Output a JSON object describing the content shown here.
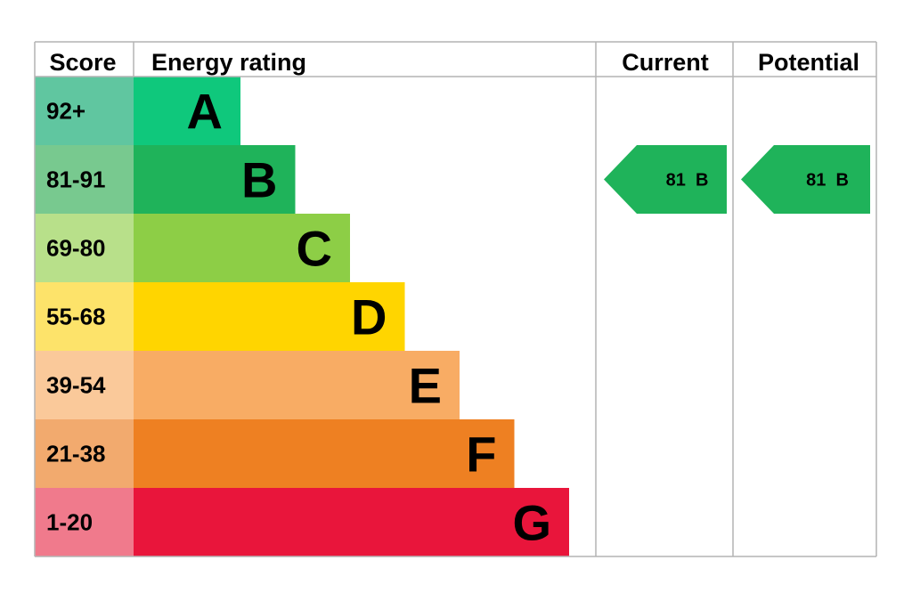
{
  "chart_data": {
    "type": "bar",
    "headers": {
      "score": "Score",
      "energy_rating": "Energy rating",
      "current": "Current",
      "potential": "Potential"
    },
    "bands": [
      {
        "score": "92+",
        "letter": "A",
        "color": "#0fc87c",
        "score_bg": "#60c6a0",
        "relative_length": 1
      },
      {
        "score": "81-91",
        "letter": "B",
        "color": "#1fb35a",
        "score_bg": "#78c98f",
        "relative_length": 2
      },
      {
        "score": "69-80",
        "letter": "C",
        "color": "#8dce46",
        "score_bg": "#b8e08a",
        "relative_length": 3
      },
      {
        "score": "55-68",
        "letter": "D",
        "color": "#ffd500",
        "score_bg": "#fde36a",
        "relative_length": 4
      },
      {
        "score": "39-54",
        "letter": "E",
        "color": "#f8ac64",
        "score_bg": "#fac99a",
        "relative_length": 5
      },
      {
        "score": "21-38",
        "letter": "F",
        "color": "#ee8022",
        "score_bg": "#f2aa6e",
        "relative_length": 6
      },
      {
        "score": "1-20",
        "letter": "G",
        "color": "#e9153b",
        "score_bg": "#f07a8c",
        "relative_length": 7
      }
    ],
    "current": {
      "value": 81,
      "band": "B",
      "label": "81  B",
      "color": "#1fb35a"
    },
    "potential": {
      "value": 81,
      "band": "B",
      "label": "81  B",
      "color": "#1fb35a"
    }
  }
}
